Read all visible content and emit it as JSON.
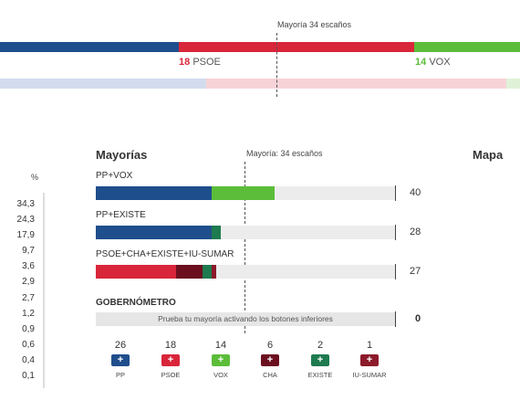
{
  "colors": {
    "pp": "#1f4e8c",
    "psoe": "#d9253a",
    "vox": "#5cbd3a",
    "cha": "#6b0f1f",
    "existe": "#1e7a4f",
    "iu_sumar": "#8b1a2a"
  },
  "top": {
    "majority_label": "Mayoría 34 escaños",
    "psoe_seats": "18",
    "psoe_name": "PSOE",
    "vox_seats": "14",
    "vox_name": "VOX"
  },
  "left": {
    "pct_header": "%",
    "percentages": [
      "34,3",
      "24,3",
      "17,9",
      "9,7",
      "3,6",
      "2,9",
      "2,7",
      "1,2",
      "0,9",
      "0,6",
      "0,4",
      "0,1"
    ]
  },
  "mayorias": {
    "title": "Mayorías",
    "mapa_title": "Mapa",
    "majority_label": "Mayoría: 34 escaños",
    "coalitions": [
      {
        "name": "PP+VOX",
        "total": "40",
        "parts": [
          {
            "party": "pp",
            "seats": 26
          },
          {
            "party": "vox",
            "seats": 14
          }
        ]
      },
      {
        "name": "PP+EXISTE",
        "total": "28",
        "parts": [
          {
            "party": "pp",
            "seats": 26
          },
          {
            "party": "existe",
            "seats": 2
          }
        ]
      },
      {
        "name": "PSOE+CHA+EXISTE+IU-SUMAR",
        "total": "27",
        "parts": [
          {
            "party": "psoe",
            "seats": 18
          },
          {
            "party": "cha",
            "seats": 6
          },
          {
            "party": "existe",
            "seats": 2
          },
          {
            "party": "iu_sumar",
            "seats": 1
          }
        ]
      }
    ],
    "gobernometro": {
      "title": "GOBERNÓMETRO",
      "hint": "Prueba tu mayoría activando los botones inferiores",
      "total": "0"
    },
    "parties": [
      {
        "seats": "26",
        "name": "PP",
        "color": "pp",
        "symbol": "+"
      },
      {
        "seats": "18",
        "name": "PSOE",
        "color": "psoe",
        "symbol": "+"
      },
      {
        "seats": "14",
        "name": "VOX",
        "color": "vox",
        "symbol": "+"
      },
      {
        "seats": "6",
        "name": "CHA",
        "color": "cha",
        "symbol": "+"
      },
      {
        "seats": "2",
        "name": "EXISTE",
        "color": "existe",
        "symbol": "+"
      },
      {
        "seats": "1",
        "name": "IU-SUMAR",
        "color": "iu_sumar",
        "symbol": "+"
      }
    ]
  }
}
